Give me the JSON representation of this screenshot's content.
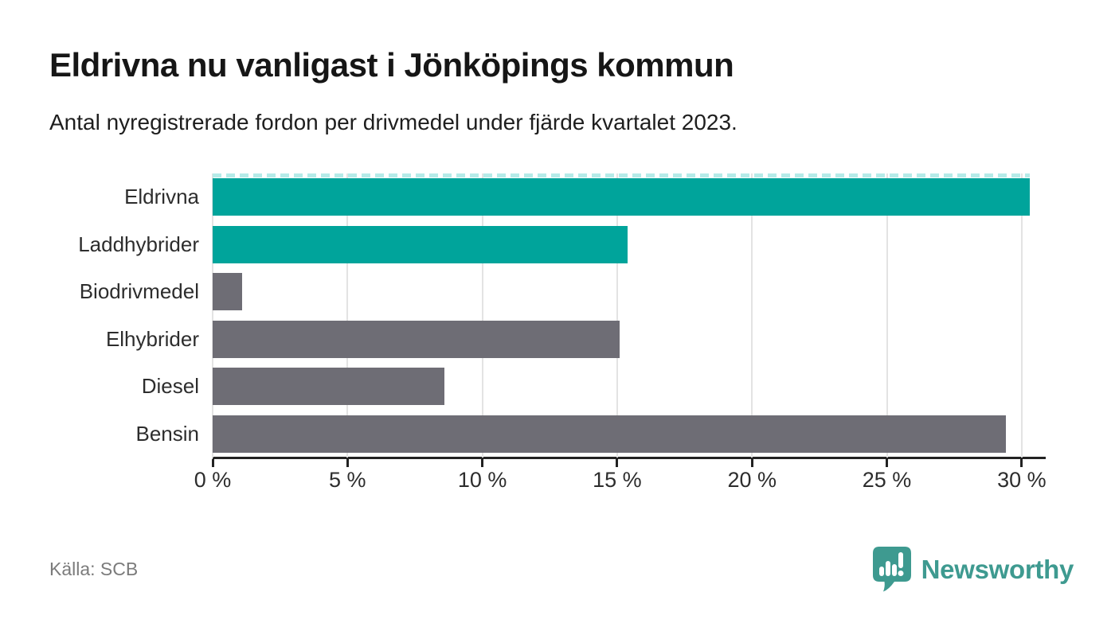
{
  "header": {
    "title": "Eldrivna nu vanligast i Jönköpings kommun",
    "subtitle": "Antal nyregistrerade fordon per drivmedel under fjärde kvartalet 2023."
  },
  "chart_data": {
    "type": "bar",
    "orientation": "horizontal",
    "title": "Eldrivna nu vanligast i Jönköpings kommun",
    "subtitle": "Antal nyregistrerade fordon per drivmedel under fjärde kvartalet 2023.",
    "unit": "%",
    "categories": [
      "Eldrivna",
      "Laddhybrider",
      "Biodrivmedel",
      "Elhybrider",
      "Diesel",
      "Bensin"
    ],
    "values": [
      30.3,
      15.4,
      1.1,
      15.1,
      8.6,
      29.4
    ],
    "bars": [
      {
        "label": "Eldrivna",
        "value": 30.3,
        "color": "#00a49b",
        "dashed_top": true
      },
      {
        "label": "Laddhybrider",
        "value": 15.4,
        "color": "#00a49b",
        "dashed_top": false
      },
      {
        "label": "Biodrivmedel",
        "value": 1.1,
        "color": "#6e6d75",
        "dashed_top": false
      },
      {
        "label": "Elhybrider",
        "value": 15.1,
        "color": "#6e6d75",
        "dashed_top": false
      },
      {
        "label": "Diesel",
        "value": 8.6,
        "color": "#6e6d75",
        "dashed_top": false
      },
      {
        "label": "Bensin",
        "value": 29.4,
        "color": "#6e6d75",
        "dashed_top": false
      }
    ],
    "x_ticks": [
      {
        "value": 0,
        "label": "0 %"
      },
      {
        "value": 5,
        "label": "5 %"
      },
      {
        "value": 10,
        "label": "10 %"
      },
      {
        "value": 15,
        "label": "15 %"
      },
      {
        "value": 20,
        "label": "20 %"
      },
      {
        "value": 25,
        "label": "25 %"
      },
      {
        "value": 30,
        "label": "30 %"
      }
    ],
    "xlim": [
      0,
      30.89
    ],
    "grid": "vertical",
    "legend": "none",
    "colors": {
      "highlight": "#00a49b",
      "neutral": "#6e6d75",
      "dash_cap": "#b5ebe8",
      "gridline": "#e3e3e3",
      "axis": "#222222"
    }
  },
  "footer": {
    "source": "Källa: SCB",
    "brand": {
      "name": "Newsworthy",
      "icon": "speech-bubble-bar-chart-icon",
      "color": "#3e9a90"
    }
  }
}
